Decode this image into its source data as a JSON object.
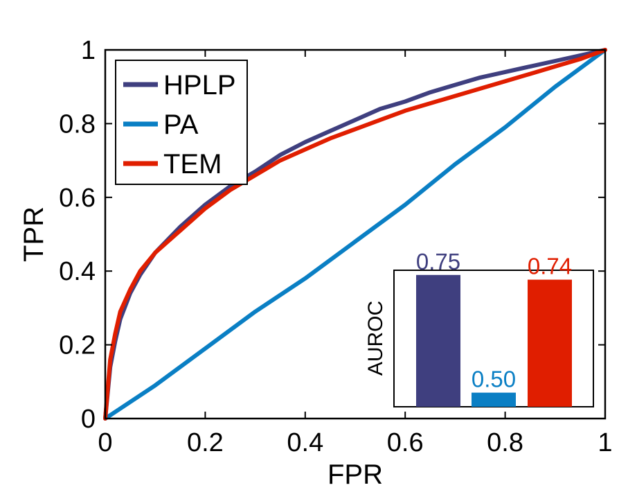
{
  "chart_data": [
    {
      "type": "line",
      "title": "",
      "xlabel": "FPR",
      "ylabel": "TPR",
      "xlim": [
        0,
        1
      ],
      "ylim": [
        0,
        1
      ],
      "xticks": [
        0,
        0.2,
        0.4,
        0.6,
        0.8,
        1
      ],
      "yticks": [
        0,
        0.2,
        0.4,
        0.6,
        0.8,
        1
      ],
      "x_tick_labels": [
        "0",
        "0.2",
        "0.4",
        "0.6",
        "0.8",
        "1"
      ],
      "y_tick_labels": [
        "0",
        "0.2",
        "0.4",
        "0.6",
        "0.8",
        "1"
      ],
      "grid": false,
      "legend_position": "top-left",
      "series": [
        {
          "name": "HPLP",
          "color": "#3f3f7f",
          "x": [
            0,
            0.01,
            0.02,
            0.03,
            0.05,
            0.07,
            0.1,
            0.15,
            0.2,
            0.25,
            0.3,
            0.35,
            0.4,
            0.45,
            0.5,
            0.55,
            0.6,
            0.65,
            0.7,
            0.75,
            0.8,
            0.85,
            0.9,
            0.95,
            1
          ],
          "y": [
            0,
            0.14,
            0.21,
            0.27,
            0.34,
            0.39,
            0.45,
            0.52,
            0.58,
            0.63,
            0.67,
            0.715,
            0.75,
            0.78,
            0.81,
            0.84,
            0.86,
            0.885,
            0.905,
            0.925,
            0.94,
            0.955,
            0.97,
            0.985,
            1
          ]
        },
        {
          "name": "PA",
          "color": "#0a7fc4",
          "x": [
            0,
            0.1,
            0.2,
            0.3,
            0.4,
            0.5,
            0.6,
            0.7,
            0.8,
            0.9,
            1
          ],
          "y": [
            0,
            0.09,
            0.19,
            0.29,
            0.38,
            0.48,
            0.58,
            0.69,
            0.79,
            0.9,
            1
          ]
        },
        {
          "name": "TEM",
          "color": "#e01e00",
          "x": [
            0,
            0.01,
            0.02,
            0.03,
            0.05,
            0.07,
            0.1,
            0.15,
            0.2,
            0.25,
            0.3,
            0.35,
            0.4,
            0.45,
            0.5,
            0.55,
            0.6,
            0.65,
            0.7,
            0.75,
            0.8,
            0.85,
            0.9,
            0.95,
            1
          ],
          "y": [
            0,
            0.16,
            0.23,
            0.29,
            0.35,
            0.4,
            0.45,
            0.51,
            0.57,
            0.62,
            0.66,
            0.7,
            0.73,
            0.76,
            0.785,
            0.81,
            0.835,
            0.855,
            0.875,
            0.895,
            0.915,
            0.935,
            0.955,
            0.975,
            1
          ]
        }
      ]
    },
    {
      "type": "bar",
      "title": "",
      "xlabel": "",
      "ylabel": "AUROC",
      "ylim": [
        0.47,
        0.76
      ],
      "categories": [
        "HPLP",
        "PA",
        "TEM"
      ],
      "values": [
        0.75,
        0.5,
        0.74
      ],
      "value_labels": [
        "0.75",
        "0.50",
        "0.74"
      ],
      "colors": [
        "#3f3f7f",
        "#0a7fc4",
        "#e01e00"
      ],
      "position": "bottom-right inset"
    }
  ]
}
